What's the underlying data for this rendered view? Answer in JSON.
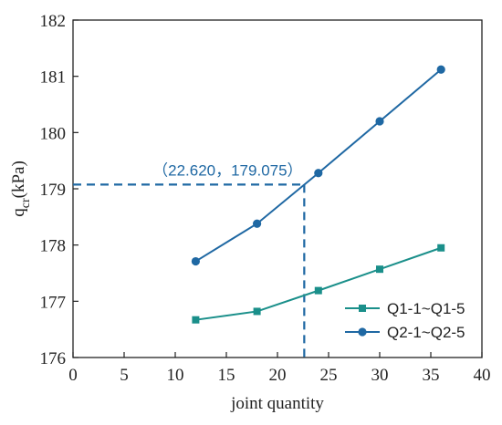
{
  "chart_data": {
    "type": "line",
    "xlabel": "joint quantity",
    "ylabel_main": "q",
    "ylabel_sub": "cr",
    "ylabel_unit": "(kPa)",
    "xlim": [
      0,
      40
    ],
    "ylim": [
      176,
      182
    ],
    "xticks": [
      0,
      5,
      10,
      15,
      20,
      25,
      30,
      35,
      40
    ],
    "yticks": [
      176,
      177,
      178,
      179,
      180,
      181,
      182
    ],
    "grid": false,
    "legend_position": "bottom-right",
    "series": [
      {
        "name": "Q1-1~Q1-5",
        "color": "#1a8f8a",
        "marker": "square",
        "x": [
          12,
          18,
          24,
          30,
          36
        ],
        "y": [
          176.67,
          176.82,
          177.19,
          177.57,
          177.95
        ]
      },
      {
        "name": "Q2-1~Q2-5",
        "color": "#1f68a3",
        "marker": "circle",
        "x": [
          12,
          18,
          24,
          30,
          36
        ],
        "y": [
          177.71,
          178.38,
          179.28,
          180.2,
          181.12
        ]
      }
    ],
    "annotation": {
      "text": "（22.620，179.075）",
      "x": 22.62,
      "y": 179.075,
      "color": "#1f68a3"
    }
  }
}
